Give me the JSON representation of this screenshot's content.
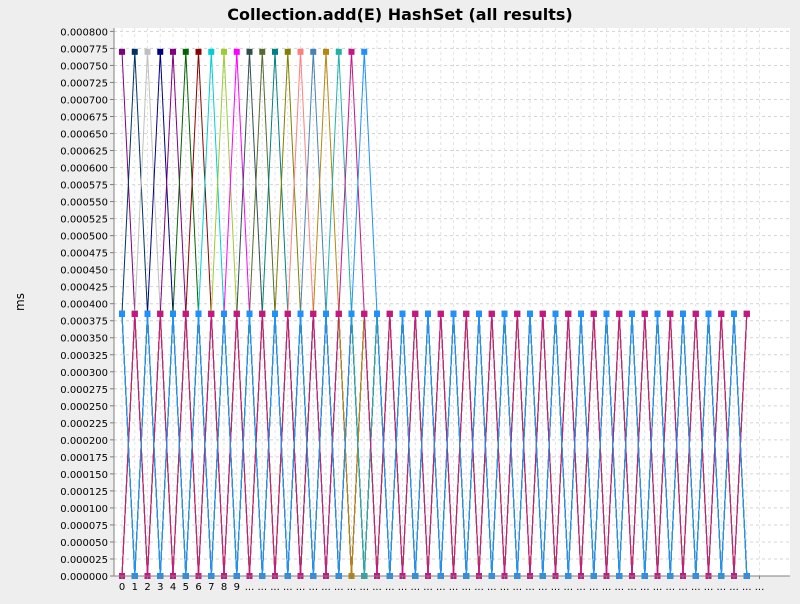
{
  "chart_data": {
    "type": "line",
    "title": "Collection.add(E) HashSet (all results)",
    "xlabel": "",
    "ylabel": "ms",
    "ylim": [
      0,
      0.0008
    ],
    "y_tick_step": 2.5e-05,
    "y_tick_labels": [
      "0.000000",
      "0.000025",
      "0.000050",
      "0.000075",
      "0.000100",
      "0.000125",
      "0.000150",
      "0.000175",
      "0.000200",
      "0.000225",
      "0.000250",
      "0.000275",
      "0.000300",
      "0.000325",
      "0.000350",
      "0.000375",
      "0.000400",
      "0.000425",
      "0.000450",
      "0.000475",
      "0.000500",
      "0.000525",
      "0.000550",
      "0.000575",
      "0.000600",
      "0.000625",
      "0.000650",
      "0.000675",
      "0.000700",
      "0.000725",
      "0.000750",
      "0.000775",
      "0.000800"
    ],
    "x_tick_labels": [
      "0",
      "1",
      "2",
      "3",
      "4",
      "5",
      "6",
      "7",
      "8",
      "9",
      "...",
      "...",
      "...",
      "...",
      "...",
      "...",
      "...",
      "...",
      "...",
      "...",
      "...",
      "...",
      "...",
      "...",
      "...",
      "...",
      "...",
      "...",
      "...",
      "...",
      "...",
      "...",
      "...",
      "...",
      "...",
      "...",
      "...",
      "...",
      "...",
      "...",
      "...",
      "...",
      "...",
      "...",
      "...",
      "...",
      "...",
      "...",
      "...",
      "...",
      "..."
    ],
    "grid": true,
    "legend": "none",
    "value_levels_observed": [
      0,
      0.000385,
      0.00077
    ],
    "series_colors": [
      "#7f007f",
      "#003366",
      "#bfbfbf",
      "#000080",
      "#800080",
      "#006400",
      "#8b0000",
      "#00ced1",
      "#9acd32",
      "#ff00ff",
      "#2f4f4f",
      "#556b2f",
      "#008080",
      "#808000",
      "#ff7f7f",
      "#4682b4",
      "#b8860b",
      "#20b2aa",
      "#c71585",
      "#1e90ff"
    ],
    "series": [
      {
        "values": [
          0.00077,
          0.000385,
          0,
          0.000385,
          0,
          0.000385,
          0,
          0.000385,
          0,
          0.000385,
          0,
          0.000385,
          0,
          0.000385,
          0,
          0.000385,
          0,
          0.000385,
          0,
          0.000385,
          0,
          0.000385,
          0,
          0.000385,
          0,
          0.000385,
          0,
          0.000385,
          0,
          0.000385,
          0,
          0.000385,
          0,
          0.000385,
          0,
          0.000385,
          0,
          0.000385,
          0,
          0.000385,
          0,
          0.000385,
          0,
          0.000385,
          0,
          0.000385,
          0,
          0.000385,
          0,
          0.000385
        ]
      },
      {
        "values": [
          0.000385,
          0.00077,
          0.000385,
          0,
          0.000385,
          0,
          0.000385,
          0,
          0.000385,
          0,
          0.000385,
          0,
          0.000385,
          0,
          0.000385,
          0,
          0.000385,
          0,
          0.000385,
          0,
          0.000385,
          0,
          0.000385,
          0,
          0.000385,
          0,
          0.000385,
          0,
          0.000385,
          0,
          0.000385,
          0,
          0.000385,
          0,
          0.000385,
          0,
          0.000385,
          0,
          0.000385,
          0,
          0.000385,
          0,
          0.000385,
          0,
          0.000385,
          0,
          0.000385,
          0,
          0.000385,
          0
        ]
      },
      {
        "values": [
          0,
          0.000385,
          0.00077,
          0.000385,
          0,
          0.000385,
          0,
          0.000385,
          0,
          0.000385,
          0,
          0.000385,
          0,
          0.000385,
          0,
          0.000385,
          0,
          0.000385,
          0,
          0.000385,
          0,
          0.000385,
          0,
          0.000385,
          0,
          0.000385,
          0,
          0.000385,
          0,
          0.000385,
          0,
          0.000385,
          0,
          0.000385,
          0,
          0.000385,
          0,
          0.000385,
          0,
          0.000385,
          0,
          0.000385,
          0,
          0.000385,
          0,
          0.000385,
          0,
          0.000385,
          0,
          0.000385
        ]
      },
      {
        "values": [
          0.000385,
          0,
          0.000385,
          0.00077,
          0.000385,
          0,
          0.000385,
          0,
          0.000385,
          0,
          0.000385,
          0,
          0.000385,
          0,
          0.000385,
          0,
          0.000385,
          0,
          0.000385,
          0,
          0.000385,
          0,
          0.000385,
          0,
          0.000385,
          0,
          0.000385,
          0,
          0.000385,
          0,
          0.000385,
          0,
          0.000385,
          0,
          0.000385,
          0,
          0.000385,
          0,
          0.000385,
          0,
          0.000385,
          0,
          0.000385,
          0,
          0.000385,
          0,
          0.000385,
          0,
          0.000385,
          0
        ]
      },
      {
        "values": [
          0,
          0.000385,
          0,
          0.000385,
          0.00077,
          0.000385,
          0,
          0.000385,
          0,
          0.000385,
          0,
          0.000385,
          0,
          0.000385,
          0,
          0.000385,
          0,
          0.000385,
          0,
          0.000385,
          0,
          0.000385,
          0,
          0.000385,
          0,
          0.000385,
          0,
          0.000385,
          0,
          0.000385,
          0,
          0.000385,
          0,
          0.000385,
          0,
          0.000385,
          0,
          0.000385,
          0,
          0.000385,
          0,
          0.000385,
          0,
          0.000385,
          0,
          0.000385,
          0,
          0.000385,
          0,
          0.000385
        ]
      },
      {
        "values": [
          0.000385,
          0,
          0.000385,
          0,
          0.000385,
          0.00077,
          0.000385,
          0,
          0.000385,
          0,
          0.000385,
          0,
          0.000385,
          0,
          0.000385,
          0,
          0.000385,
          0,
          0.000385,
          0,
          0.000385,
          0,
          0.000385,
          0,
          0.000385,
          0,
          0.000385,
          0,
          0.000385,
          0,
          0.000385,
          0,
          0.000385,
          0,
          0.000385,
          0,
          0.000385,
          0,
          0.000385,
          0,
          0.000385,
          0,
          0.000385,
          0,
          0.000385,
          0,
          0.000385,
          0,
          0.000385,
          0
        ]
      },
      {
        "values": [
          0,
          0.000385,
          0,
          0.000385,
          0,
          0.000385,
          0.00077,
          0.000385,
          0,
          0.000385,
          0,
          0.000385,
          0,
          0.000385,
          0,
          0.000385,
          0,
          0.000385,
          0,
          0.000385,
          0,
          0.000385,
          0,
          0.000385,
          0,
          0.000385,
          0,
          0.000385,
          0,
          0.000385,
          0,
          0.000385,
          0,
          0.000385,
          0,
          0.000385,
          0,
          0.000385,
          0,
          0.000385,
          0,
          0.000385,
          0,
          0.000385,
          0,
          0.000385,
          0,
          0.000385,
          0,
          0.000385
        ]
      },
      {
        "values": [
          0.000385,
          0,
          0.000385,
          0,
          0.000385,
          0,
          0.000385,
          0.00077,
          0.000385,
          0,
          0.000385,
          0,
          0.000385,
          0,
          0.000385,
          0,
          0.000385,
          0,
          0.000385,
          0,
          0.000385,
          0,
          0.000385,
          0,
          0.000385,
          0,
          0.000385,
          0,
          0.000385,
          0,
          0.000385,
          0,
          0.000385,
          0,
          0.000385,
          0,
          0.000385,
          0,
          0.000385,
          0,
          0.000385,
          0,
          0.000385,
          0,
          0.000385,
          0,
          0.000385,
          0,
          0.000385,
          0
        ]
      },
      {
        "values": [
          0,
          0.000385,
          0,
          0.000385,
          0,
          0.000385,
          0,
          0.000385,
          0.00077,
          0.000385,
          0,
          0.000385,
          0,
          0.000385,
          0,
          0.000385,
          0,
          0.000385,
          0,
          0.000385,
          0,
          0.000385,
          0,
          0.000385,
          0,
          0.000385,
          0,
          0.000385,
          0,
          0.000385,
          0,
          0.000385,
          0,
          0.000385,
          0,
          0.000385,
          0,
          0.000385,
          0,
          0.000385,
          0,
          0.000385,
          0,
          0.000385,
          0,
          0.000385,
          0,
          0.000385,
          0,
          0.000385
        ]
      },
      {
        "values": [
          0.000385,
          0,
          0.000385,
          0,
          0.000385,
          0,
          0.000385,
          0,
          0.000385,
          0.00077,
          0.000385,
          0,
          0.000385,
          0,
          0.000385,
          0,
          0.000385,
          0,
          0.000385,
          0,
          0.000385,
          0,
          0.000385,
          0,
          0.000385,
          0,
          0.000385,
          0,
          0.000385,
          0,
          0.000385,
          0,
          0.000385,
          0,
          0.000385,
          0,
          0.000385,
          0,
          0.000385,
          0,
          0.000385,
          0,
          0.000385,
          0,
          0.000385,
          0,
          0.000385,
          0,
          0.000385,
          0
        ]
      },
      {
        "values": [
          0,
          0.000385,
          0,
          0.000385,
          0,
          0.000385,
          0,
          0.000385,
          0,
          0.000385,
          0.00077,
          0.000385,
          0,
          0.000385,
          0,
          0.000385,
          0,
          0.000385,
          0,
          0.000385,
          0,
          0.000385,
          0,
          0.000385,
          0,
          0.000385,
          0,
          0.000385,
          0,
          0.000385,
          0,
          0.000385,
          0,
          0.000385,
          0,
          0.000385,
          0,
          0.000385,
          0,
          0.000385,
          0,
          0.000385,
          0,
          0.000385,
          0,
          0.000385,
          0,
          0.000385,
          0,
          0.000385
        ]
      },
      {
        "values": [
          0.000385,
          0,
          0.000385,
          0,
          0.000385,
          0,
          0.000385,
          0,
          0.000385,
          0,
          0.000385,
          0.00077,
          0.000385,
          0,
          0.000385,
          0,
          0.000385,
          0,
          0.000385,
          0,
          0.000385,
          0,
          0.000385,
          0,
          0.000385,
          0,
          0.000385,
          0,
          0.000385,
          0,
          0.000385,
          0,
          0.000385,
          0,
          0.000385,
          0,
          0.000385,
          0,
          0.000385,
          0,
          0.000385,
          0,
          0.000385,
          0,
          0.000385,
          0,
          0.000385,
          0,
          0.000385,
          0
        ]
      },
      {
        "values": [
          0,
          0.000385,
          0,
          0.000385,
          0,
          0.000385,
          0,
          0.000385,
          0,
          0.000385,
          0,
          0.000385,
          0.00077,
          0.000385,
          0,
          0.000385,
          0,
          0.000385,
          0,
          0.000385,
          0,
          0.000385,
          0,
          0.000385,
          0,
          0.000385,
          0,
          0.000385,
          0,
          0.000385,
          0,
          0.000385,
          0,
          0.000385,
          0,
          0.000385,
          0,
          0.000385,
          0,
          0.000385,
          0,
          0.000385,
          0,
          0.000385,
          0,
          0.000385,
          0,
          0.000385,
          0,
          0.000385
        ]
      },
      {
        "values": [
          0.000385,
          0,
          0.000385,
          0,
          0.000385,
          0,
          0.000385,
          0,
          0.000385,
          0,
          0.000385,
          0,
          0.000385,
          0.00077,
          0.000385,
          0,
          0.000385,
          0,
          0.000385,
          0,
          0.000385,
          0,
          0.000385,
          0,
          0.000385,
          0,
          0.000385,
          0,
          0.000385,
          0,
          0.000385,
          0,
          0.000385,
          0,
          0.000385,
          0,
          0.000385,
          0,
          0.000385,
          0,
          0.000385,
          0,
          0.000385,
          0,
          0.000385,
          0,
          0.000385,
          0,
          0.000385,
          0
        ]
      },
      {
        "values": [
          0,
          0.000385,
          0,
          0.000385,
          0,
          0.000385,
          0,
          0.000385,
          0,
          0.000385,
          0,
          0.000385,
          0,
          0.000385,
          0.00077,
          0.000385,
          0,
          0.000385,
          0,
          0.000385,
          0,
          0.000385,
          0,
          0.000385,
          0,
          0.000385,
          0,
          0.000385,
          0,
          0.000385,
          0,
          0.000385,
          0,
          0.000385,
          0,
          0.000385,
          0,
          0.000385,
          0,
          0.000385,
          0,
          0.000385,
          0,
          0.000385,
          0,
          0.000385,
          0,
          0.000385,
          0,
          0.000385
        ]
      },
      {
        "values": [
          0.000385,
          0,
          0.000385,
          0,
          0.000385,
          0,
          0.000385,
          0,
          0.000385,
          0,
          0.000385,
          0,
          0.000385,
          0,
          0.000385,
          0.00077,
          0.000385,
          0,
          0.000385,
          0,
          0.000385,
          0,
          0.000385,
          0,
          0.000385,
          0,
          0.000385,
          0,
          0.000385,
          0,
          0.000385,
          0,
          0.000385,
          0,
          0.000385,
          0,
          0.000385,
          0,
          0.000385,
          0,
          0.000385,
          0,
          0.000385,
          0,
          0.000385,
          0,
          0.000385,
          0,
          0.000385,
          0
        ]
      },
      {
        "values": [
          0,
          0.000385,
          0,
          0.000385,
          0,
          0.000385,
          0,
          0.000385,
          0,
          0.000385,
          0,
          0.000385,
          0,
          0.000385,
          0,
          0.000385,
          0.00077,
          0.000385,
          0,
          0.000385,
          0,
          0.000385,
          0,
          0.000385,
          0,
          0.000385,
          0,
          0.000385,
          0,
          0.000385,
          0,
          0.000385,
          0,
          0.000385,
          0,
          0.000385,
          0,
          0.000385,
          0,
          0.000385,
          0,
          0.000385,
          0,
          0.000385,
          0,
          0.000385,
          0,
          0.000385,
          0,
          0.000385
        ]
      },
      {
        "values": [
          0.000385,
          0,
          0.000385,
          0,
          0.000385,
          0,
          0.000385,
          0,
          0.000385,
          0,
          0.000385,
          0,
          0.000385,
          0,
          0.000385,
          0,
          0.000385,
          0.00077,
          0.000385,
          0,
          0.000385,
          0,
          0.000385,
          0,
          0.000385,
          0,
          0.000385,
          0,
          0.000385,
          0,
          0.000385,
          0,
          0.000385,
          0,
          0.000385,
          0,
          0.000385,
          0,
          0.000385,
          0,
          0.000385,
          0,
          0.000385,
          0,
          0.000385,
          0,
          0.000385,
          0,
          0.000385,
          0
        ]
      },
      {
        "values": [
          0,
          0.000385,
          0,
          0.000385,
          0,
          0.000385,
          0,
          0.000385,
          0,
          0.000385,
          0,
          0.000385,
          0,
          0.000385,
          0,
          0.000385,
          0,
          0.000385,
          0.00077,
          0.000385,
          0,
          0.000385,
          0,
          0.000385,
          0,
          0.000385,
          0,
          0.000385,
          0,
          0.000385,
          0,
          0.000385,
          0,
          0.000385,
          0,
          0.000385,
          0,
          0.000385,
          0,
          0.000385,
          0,
          0.000385,
          0,
          0.000385,
          0,
          0.000385,
          0,
          0.000385,
          0,
          0.000385
        ]
      },
      {
        "values": [
          0.000385,
          0,
          0.000385,
          0,
          0.000385,
          0,
          0.000385,
          0,
          0.000385,
          0,
          0.000385,
          0,
          0.000385,
          0,
          0.000385,
          0,
          0.000385,
          0,
          0.000385,
          0.00077,
          0.000385,
          0,
          0.000385,
          0,
          0.000385,
          0,
          0.000385,
          0,
          0.000385,
          0,
          0.000385,
          0,
          0.000385,
          0,
          0.000385,
          0,
          0.000385,
          0,
          0.000385,
          0,
          0.000385,
          0,
          0.000385,
          0,
          0.000385,
          0,
          0.000385,
          0,
          0.000385,
          0
        ]
      }
    ]
  }
}
